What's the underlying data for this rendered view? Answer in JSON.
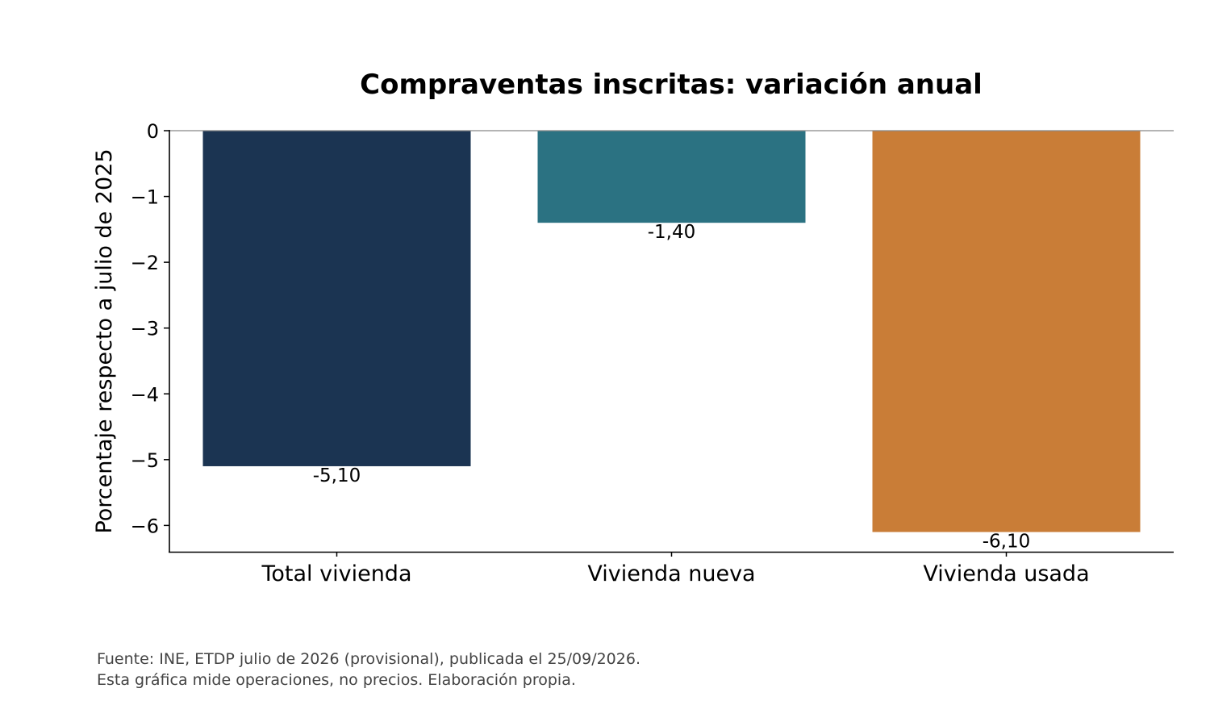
{
  "chart_data": {
    "type": "bar",
    "title": "Compraventas inscritas: variación anual",
    "xlabel": "",
    "ylabel": "Porcentaje respecto a julio de 2025",
    "categories": [
      "Total vivienda",
      "Vivienda nueva",
      "Vivienda usada"
    ],
    "values": [
      -5.1,
      -1.4,
      -6.1
    ],
    "value_labels": [
      "-5,10",
      "-1,40",
      "-6,10"
    ],
    "colors": [
      "#1b3452",
      "#2b7282",
      "#c97d37"
    ],
    "ylim": [
      -6.4,
      0
    ],
    "yticks": [
      0,
      -1,
      -2,
      -3,
      -4,
      -5,
      -6
    ],
    "ytick_labels": [
      "0",
      "−1",
      "−2",
      "−3",
      "−4",
      "−5",
      "−6"
    ],
    "grid": false,
    "legend": "none"
  },
  "footnote": {
    "line1": "Fuente: INE, ETDP julio de 2026 (provisional), publicada el 25/09/2026.",
    "line2": "Esta gráfica mide operaciones, no precios. Elaboración propia."
  }
}
